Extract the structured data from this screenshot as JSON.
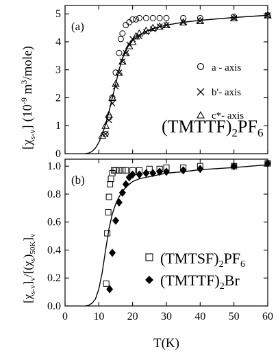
{
  "chart_data": [
    {
      "type": "scatter",
      "panel_label": "(a)",
      "ylabel_main": "[χ",
      "ylabel_sub": "s-v",
      "ylabel_rest": "] (10",
      "ylabel_sup": "-9",
      "ylabel_units_a": " m",
      "ylabel_units_sup": "3",
      "ylabel_units_b": "/mole)",
      "compound": {
        "pre": "(TMTTF)",
        "sub": "2",
        "mid": "PF",
        "sub2": "6"
      },
      "xlim": [
        0,
        60
      ],
      "ylim": [
        0,
        5.3
      ],
      "yticks": [
        0,
        1,
        2,
        3,
        4,
        5
      ],
      "series": [
        {
          "name": "a - axis",
          "marker": "circle",
          "x": [
            12,
            13,
            14,
            15,
            16,
            16.5,
            17,
            18,
            19,
            20,
            21,
            22,
            24,
            26,
            28,
            30,
            35,
            40,
            50,
            60
          ],
          "y": [
            0.7,
            1.3,
            2.0,
            2.9,
            3.6,
            4.1,
            4.3,
            4.6,
            4.7,
            4.8,
            4.8,
            4.85,
            4.85,
            4.85,
            4.85,
            4.85,
            4.85,
            4.85,
            4.9,
            4.95
          ]
        },
        {
          "name": "b'- axis",
          "marker": "x",
          "x": [
            12,
            13,
            14,
            15,
            16,
            17,
            18,
            19,
            20,
            22,
            24,
            26,
            28,
            30,
            35,
            40,
            50,
            60
          ],
          "y": [
            0.7,
            1.2,
            1.8,
            2.4,
            2.9,
            3.3,
            3.6,
            3.9,
            4.1,
            4.2,
            4.35,
            4.45,
            4.55,
            4.6,
            4.7,
            4.75,
            4.85,
            4.95
          ]
        },
        {
          "name": "c*- axis",
          "marker": "triangle",
          "x": [
            11,
            12,
            13,
            14,
            15,
            16,
            17,
            18,
            19,
            20,
            21,
            22,
            24,
            26,
            28,
            30,
            35,
            40,
            50,
            60
          ],
          "y": [
            0.65,
            1.0,
            1.4,
            2.0,
            2.5,
            2.9,
            3.3,
            3.6,
            3.85,
            4.0,
            4.2,
            4.3,
            4.4,
            4.5,
            4.55,
            4.6,
            4.7,
            4.75,
            4.85,
            4.95
          ]
        }
      ],
      "fit_curve": {
        "x": [
          6,
          7,
          8,
          9,
          10,
          11,
          12,
          13,
          14,
          15,
          16,
          17,
          18,
          19,
          20,
          22,
          24,
          26,
          28,
          30,
          35,
          40,
          50,
          60
        ],
        "y": [
          0,
          0.02,
          0.08,
          0.2,
          0.4,
          0.7,
          1.05,
          1.5,
          2.0,
          2.5,
          3.0,
          3.4,
          3.7,
          3.9,
          4.05,
          4.25,
          4.38,
          4.47,
          4.54,
          4.6,
          4.7,
          4.77,
          4.87,
          4.95
        ]
      }
    },
    {
      "type": "scatter",
      "panel_label": "(b)",
      "ylabel_text": "[χ",
      "ylabel_sub": "s-v",
      "ylabel_mid": "]",
      "ylabel_sub2": "v",
      "ylabel_rest": "/[(χ",
      "ylabel_sub3": "s",
      "ylabel_rest2": ")",
      "ylabel_sub4": "50K",
      "ylabel_rest3": "]",
      "ylabel_sub5": "v",
      "xlabel": "T(K)",
      "xlim": [
        0,
        60
      ],
      "ylim": [
        0,
        1.05
      ],
      "xticks": [
        0,
        10,
        20,
        30,
        40,
        50,
        60
      ],
      "yticks": [
        0.0,
        0.2,
        0.4,
        0.6,
        0.8,
        1.0
      ],
      "series": [
        {
          "name": "(TMTSF)₂PF₆",
          "marker": "square-open",
          "legend": {
            "pre": "(TMTSF)",
            "sub": "2",
            "mid": "PF",
            "sub2": "6"
          },
          "x": [
            12.2,
            12.5,
            12.8,
            13,
            13.3,
            13.6,
            14,
            14.5,
            15,
            16,
            17,
            18,
            20,
            22,
            25,
            28,
            30,
            35,
            40,
            50,
            60
          ],
          "y": [
            0.16,
            0.52,
            0.67,
            0.78,
            0.87,
            0.91,
            0.95,
            0.97,
            0.97,
            0.97,
            0.97,
            0.97,
            0.97,
            0.97,
            0.98,
            0.98,
            0.99,
            0.99,
            1.0,
            1.0,
            1.02
          ]
        },
        {
          "name": "(TMTTF)₂Br",
          "marker": "diamond-filled",
          "legend": {
            "pre": "(TMTTF)",
            "sub": "2",
            "mid": "Br",
            "sub2": ""
          },
          "x": [
            13.2,
            14,
            15,
            16,
            17,
            18,
            19,
            20,
            22,
            24,
            26,
            28,
            30,
            35,
            40,
            50,
            60
          ],
          "y": [
            0.12,
            0.38,
            0.61,
            0.74,
            0.81,
            0.87,
            0.92,
            0.94,
            0.94,
            0.95,
            0.95,
            0.96,
            0.96,
            0.97,
            0.98,
            1.0,
            1.02
          ]
        }
      ],
      "fit_curve": {
        "x": [
          6,
          7,
          8,
          9,
          10,
          11,
          12,
          13,
          14,
          15,
          16,
          17,
          18,
          19,
          20,
          22,
          24,
          26,
          28,
          30,
          35,
          40,
          50,
          60
        ],
        "y": [
          0,
          0.005,
          0.02,
          0.05,
          0.12,
          0.24,
          0.4,
          0.55,
          0.66,
          0.73,
          0.78,
          0.82,
          0.85,
          0.87,
          0.89,
          0.91,
          0.92,
          0.93,
          0.94,
          0.95,
          0.96,
          0.975,
          0.99,
          1.01
        ]
      }
    }
  ]
}
